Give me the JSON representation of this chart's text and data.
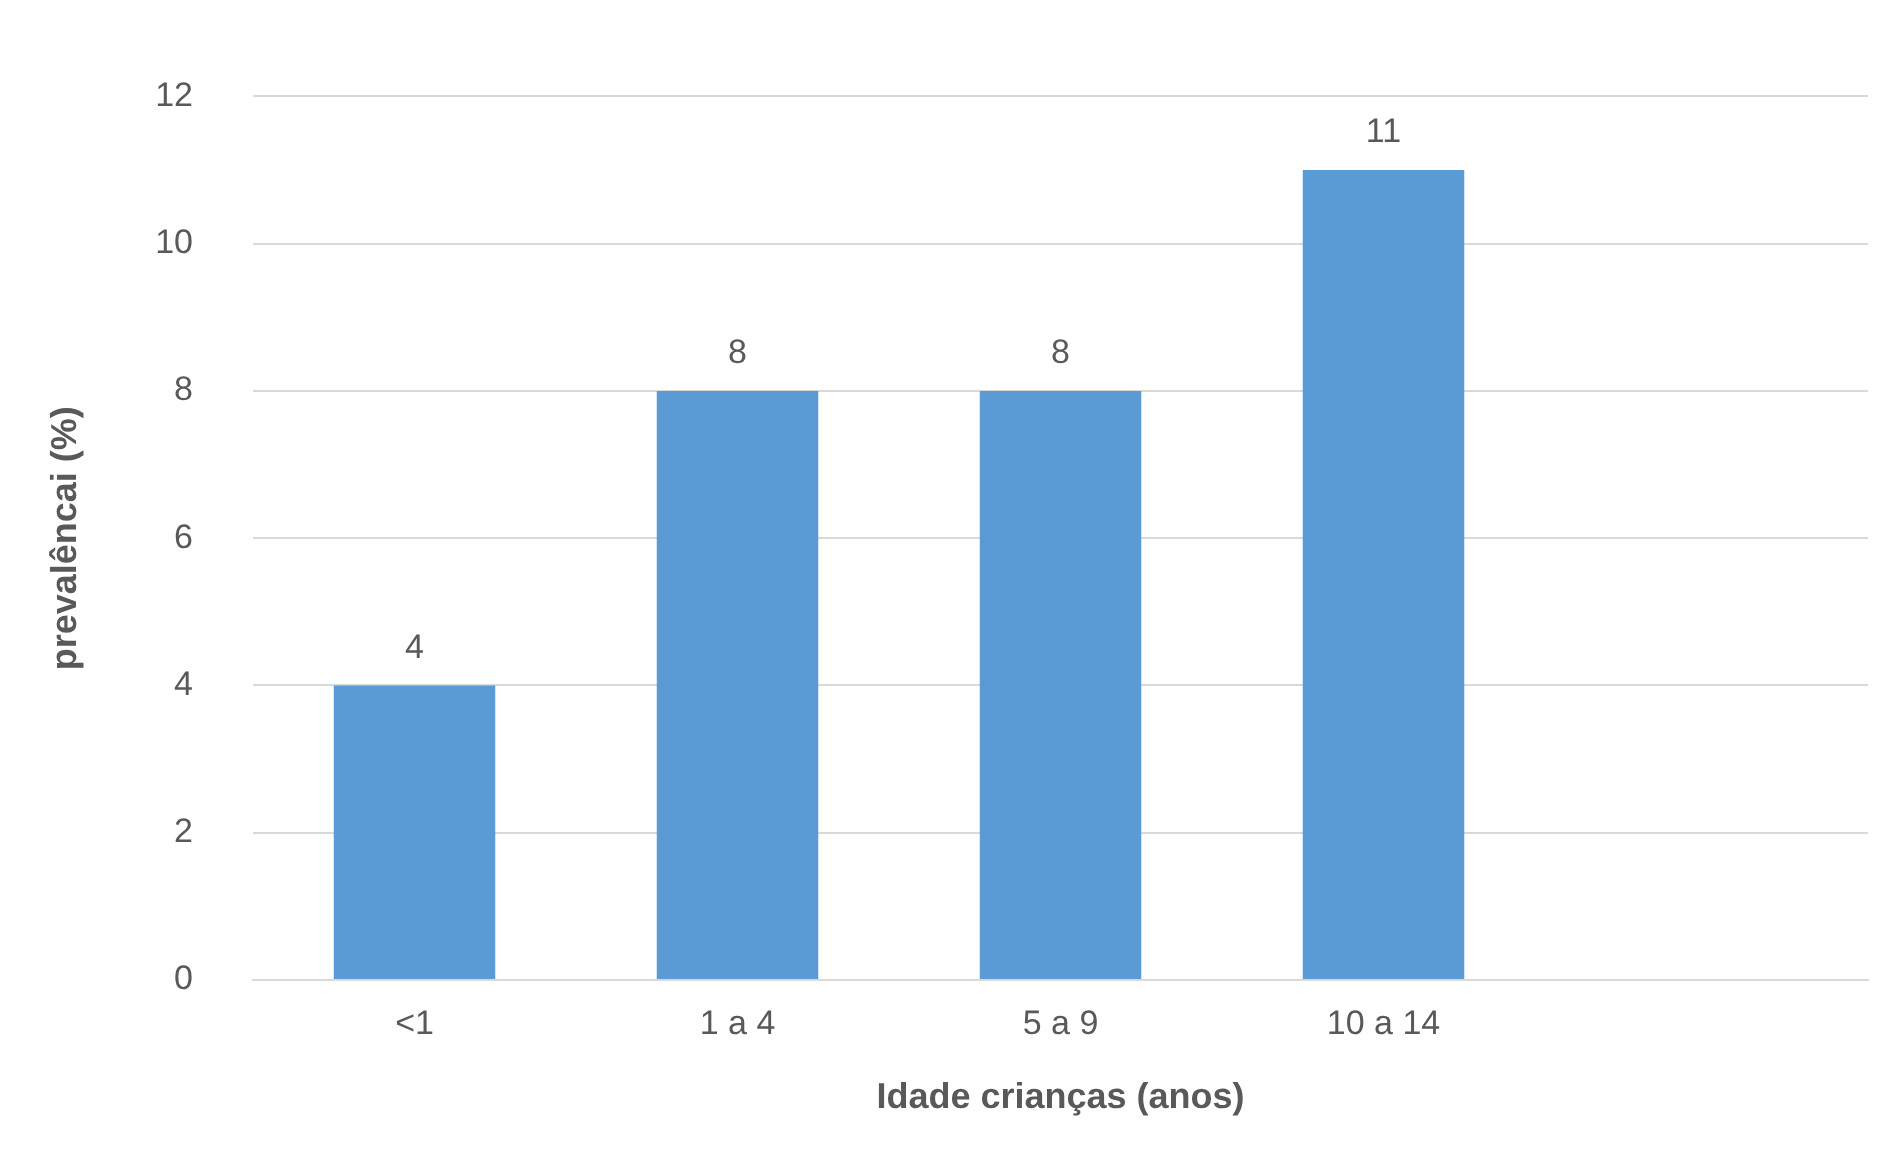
{
  "chart_data": {
    "type": "bar",
    "xlabel": "Idade crianças (anos)",
    "ylabel": "prevalêncai (%)",
    "categories": [
      "<1",
      "1 a 4",
      "5 a 9",
      "10 a 14",
      null
    ],
    "values": [
      4,
      8,
      8,
      11,
      null
    ],
    "color": "#5b9bd5",
    "ylim": [
      0,
      12
    ],
    "yticks": [
      0,
      2,
      4,
      6,
      8,
      10,
      12
    ],
    "grid": "y",
    "data_labels": true,
    "legend": false
  }
}
